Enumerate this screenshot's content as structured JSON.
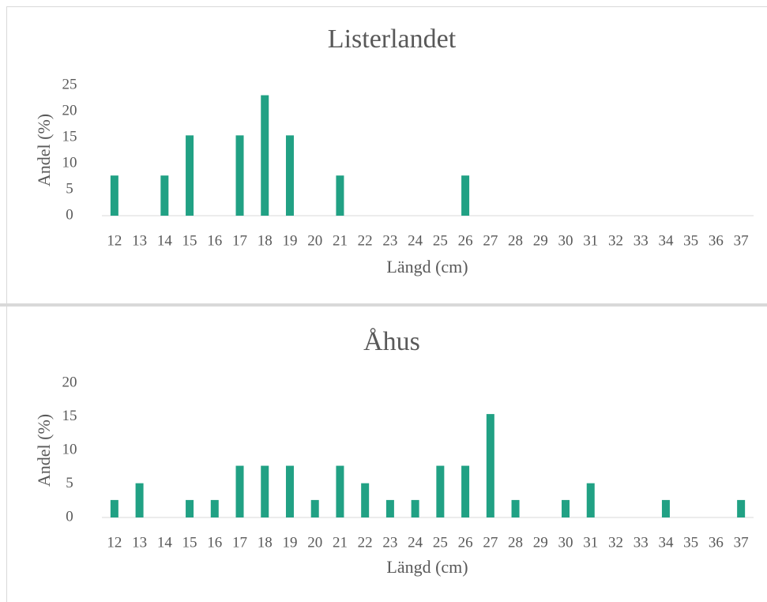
{
  "chart_data": [
    {
      "type": "bar",
      "title": "Listerlandet",
      "x_label": "Längd (cm)",
      "y_label": "Andel (%)",
      "categories": [
        "12",
        "13",
        "14",
        "15",
        "16",
        "17",
        "18",
        "19",
        "20",
        "21",
        "22",
        "23",
        "24",
        "25",
        "26",
        "27",
        "28",
        "29",
        "30",
        "31",
        "32",
        "33",
        "34",
        "35",
        "36",
        "37"
      ],
      "values": [
        7.7,
        0,
        7.7,
        15.4,
        0,
        15.4,
        23.1,
        15.4,
        0,
        7.7,
        0,
        0,
        0,
        0,
        7.7,
        0,
        0,
        0,
        0,
        0,
        0,
        0,
        0,
        0,
        0,
        0
      ],
      "color": "#21a184",
      "ylim": [
        0,
        25
      ],
      "yticks": [
        0,
        5,
        10,
        15,
        20,
        25
      ],
      "grid": false
    },
    {
      "type": "bar",
      "title": "Åhus",
      "x_label": "Längd (cm)",
      "y_label": "Andel (%)",
      "categories": [
        "12",
        "13",
        "14",
        "15",
        "16",
        "17",
        "18",
        "19",
        "20",
        "21",
        "22",
        "23",
        "24",
        "25",
        "26",
        "27",
        "28",
        "29",
        "30",
        "31",
        "32",
        "33",
        "34",
        "35",
        "36",
        "37"
      ],
      "values": [
        2.6,
        5.1,
        0,
        2.6,
        2.6,
        7.7,
        7.7,
        7.7,
        2.6,
        7.7,
        5.1,
        2.6,
        2.6,
        7.7,
        7.7,
        15.4,
        2.6,
        0,
        2.6,
        5.1,
        0,
        0,
        2.6,
        0,
        0,
        2.6
      ],
      "color": "#21a184",
      "ylim": [
        0,
        20
      ],
      "yticks": [
        0,
        5,
        10,
        15,
        20
      ],
      "grid": false
    }
  ]
}
